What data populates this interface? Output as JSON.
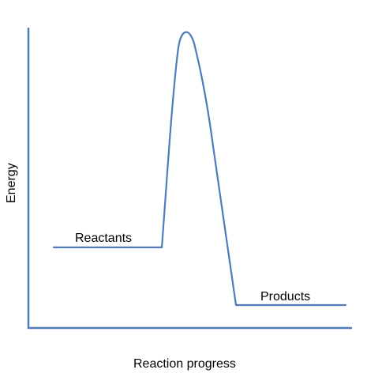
{
  "diagram": {
    "axis_y_label": "Energy",
    "axis_x_label": "Reaction progress",
    "reactants_label": "Reactants",
    "products_label": "Products",
    "line_color": "#4F7CB8"
  }
}
